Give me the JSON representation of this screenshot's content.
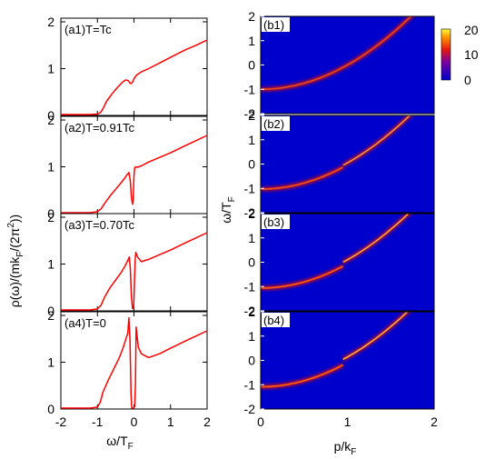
{
  "chart_data": [
    {
      "id": "a",
      "type": "line",
      "xlabel": "ω/T",
      "xlabel_sub": "F",
      "ylabel": "ρ(ω)/(mk",
      "ylabel_sub": "F",
      "ylabel_mid": "/(2π",
      "ylabel_sup": "2",
      "ylabel_end": "))",
      "xlim": [
        -2,
        2
      ],
      "ylim": [
        0,
        2
      ],
      "xticks": [
        "-2",
        "-1",
        "0",
        "1",
        "2"
      ],
      "yticks": [
        "0",
        "1",
        "2"
      ],
      "line_color": "#ff0000",
      "panels": [
        {
          "label": "(a1)T=Tc",
          "x": [
            -2,
            -1.2,
            -1.0,
            -0.92,
            -0.85,
            -0.75,
            -0.6,
            -0.45,
            -0.3,
            -0.22,
            -0.15,
            -0.12,
            -0.08,
            -0.04,
            0,
            0.05,
            0.1,
            0.2,
            0.4,
            0.7,
            1.0,
            1.4,
            1.7,
            2.0
          ],
          "y": [
            0.02,
            0.02,
            0.03,
            0.06,
            0.14,
            0.3,
            0.46,
            0.6,
            0.72,
            0.76,
            0.74,
            0.7,
            0.68,
            0.71,
            0.78,
            0.84,
            0.88,
            0.93,
            1.0,
            1.12,
            1.24,
            1.4,
            1.5,
            1.61
          ]
        },
        {
          "label": "(a2)T=0.91Tc",
          "x": [
            -2,
            -1.2,
            -1.0,
            -0.9,
            -0.8,
            -0.65,
            -0.5,
            -0.35,
            -0.25,
            -0.18,
            -0.14,
            -0.1,
            -0.07,
            -0.04,
            -0.02,
            0,
            0.02,
            0.05,
            0.1,
            0.2,
            0.4,
            0.7,
            1.0,
            1.4,
            1.7,
            2.0
          ],
          "y": [
            0.02,
            0.02,
            0.04,
            0.1,
            0.22,
            0.38,
            0.52,
            0.66,
            0.76,
            0.84,
            0.88,
            0.7,
            0.35,
            0.2,
            0.3,
            0.8,
            0.98,
            1.0,
            0.99,
            1.02,
            1.1,
            1.2,
            1.3,
            1.45,
            1.56,
            1.67
          ]
        },
        {
          "label": "(a3)T=0.70Tc",
          "x": [
            -2,
            -1.2,
            -1.0,
            -0.9,
            -0.8,
            -0.65,
            -0.5,
            -0.35,
            -0.25,
            -0.18,
            -0.13,
            -0.1,
            -0.07,
            -0.04,
            -0.01,
            0.01,
            0.03,
            0.05,
            0.1,
            0.2,
            0.4,
            0.7,
            1.0,
            1.4,
            1.7,
            2.0
          ],
          "y": [
            0.02,
            0.02,
            0.04,
            0.12,
            0.3,
            0.5,
            0.66,
            0.82,
            0.95,
            1.06,
            1.15,
            0.9,
            0.3,
            0.05,
            0.05,
            0.5,
            1.05,
            1.25,
            1.15,
            1.05,
            1.1,
            1.2,
            1.3,
            1.45,
            1.56,
            1.67
          ]
        },
        {
          "label": "(a4)T=0",
          "x": [
            -2,
            -1.2,
            -1.0,
            -0.92,
            -0.85,
            -0.7,
            -0.55,
            -0.4,
            -0.3,
            -0.22,
            -0.17,
            -0.14,
            -0.11,
            -0.08,
            -0.06,
            -0.02,
            0.02,
            0.04,
            0.06,
            0.08,
            0.12,
            0.2,
            0.4,
            0.7,
            1.0,
            1.4,
            1.7,
            2.0
          ],
          "y": [
            0.02,
            0.02,
            0.04,
            0.15,
            0.36,
            0.62,
            0.86,
            1.1,
            1.3,
            1.5,
            1.62,
            1.95,
            1.5,
            0.3,
            0.02,
            0.02,
            0.05,
            0.5,
            1.75,
            1.6,
            1.32,
            1.18,
            1.1,
            1.18,
            1.3,
            1.45,
            1.56,
            1.67
          ]
        }
      ]
    },
    {
      "id": "b",
      "type": "heatmap",
      "xlabel": "p/k",
      "xlabel_sub": "F",
      "ylabel": "ω/T",
      "ylabel_sub": "F",
      "xlim": [
        0,
        2
      ],
      "ylim": [
        -2,
        2
      ],
      "xticks": [
        "0",
        "1",
        "2"
      ],
      "yticks": [
        "2",
        "1",
        "0",
        "-1",
        "-2"
      ],
      "colorbar": {
        "ticks": [
          "20",
          "10",
          "0"
        ],
        "range": [
          0,
          20
        ]
      },
      "background_color": "#0000cc",
      "panels": [
        {
          "label": "(b1)",
          "gap": 0,
          "brightness": 0.75,
          "dispersion": "ω = p² − 1"
        },
        {
          "label": "(b2)",
          "gap": 0.12,
          "brightness": 0.85,
          "dispersion": "ω = p² − 1"
        },
        {
          "label": "(b3)",
          "gap": 0.25,
          "brightness": 0.95,
          "dispersion": "ω = p² − 1"
        },
        {
          "label": "(b4)",
          "gap": 0.35,
          "brightness": 1.0,
          "dispersion": "ω = p² − 1"
        }
      ]
    }
  ]
}
